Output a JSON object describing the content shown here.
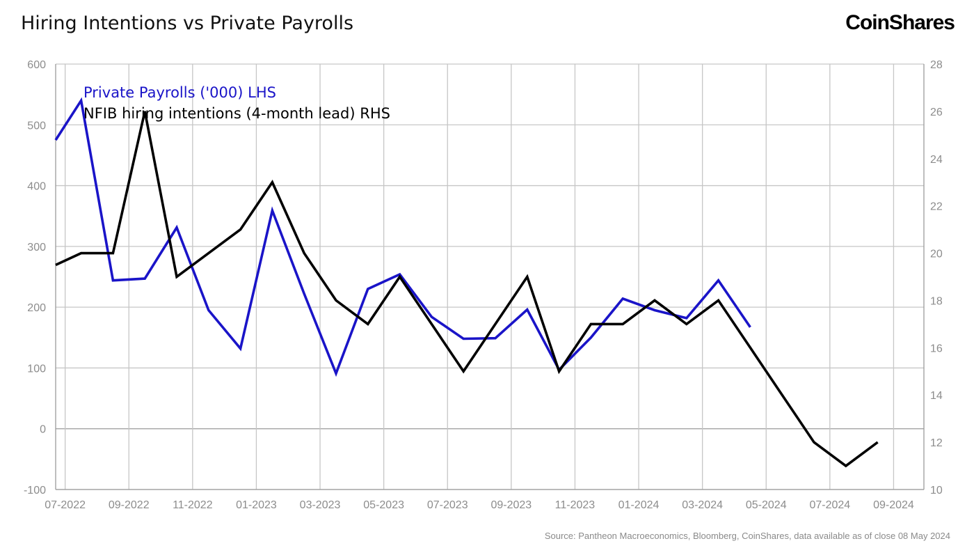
{
  "title": "Hiring Intentions vs Private Payrolls",
  "brand": "CoinShares",
  "source": "Source: Pantheon Macroeconomics, Bloomberg, CoinShares, data available as of close 08 May 2024",
  "chart_data": {
    "type": "line",
    "x_tick_labels": [
      "07-2022",
      "09-2022",
      "11-2022",
      "01-2023",
      "03-2023",
      "05-2023",
      "07-2023",
      "09-2023",
      "11-2023",
      "01-2024",
      "03-2024",
      "05-2024",
      "07-2024",
      "09-2024"
    ],
    "y_left": {
      "ticks": [
        600,
        500,
        400,
        300,
        200,
        100,
        0,
        -100
      ],
      "ylim": [
        -100,
        600
      ]
    },
    "y_right": {
      "ticks": [
        28,
        26,
        24,
        22,
        20,
        18,
        16,
        14,
        12,
        10
      ],
      "ylim": [
        10,
        28
      ]
    },
    "grid": true,
    "legend_position": "top-left",
    "series": [
      {
        "name": "Private Payrolls ('000) LHS",
        "axis": "left",
        "color": "#1a14c8",
        "points": [
          [
            "2022-06",
            475
          ],
          [
            "2022-07",
            540
          ],
          [
            "2022-08",
            244
          ],
          [
            "2022-09",
            247
          ],
          [
            "2022-10",
            331
          ],
          [
            "2022-11",
            195
          ],
          [
            "2022-12",
            132
          ],
          [
            "2023-01",
            359
          ],
          [
            "2023-02",
            222
          ],
          [
            "2023-03",
            91
          ],
          [
            "2023-04",
            230
          ],
          [
            "2023-05",
            254
          ],
          [
            "2023-06",
            184
          ],
          [
            "2023-07",
            148
          ],
          [
            "2023-08",
            149
          ],
          [
            "2023-09",
            196
          ],
          [
            "2023-10",
            97
          ],
          [
            "2023-11",
            150
          ],
          [
            "2023-12",
            214
          ],
          [
            "2024-01",
            195
          ],
          [
            "2024-02",
            182
          ],
          [
            "2024-03",
            244
          ],
          [
            "2024-04",
            167
          ]
        ]
      },
      {
        "name": "NFIB hiring intentions (4-month lead) RHS",
        "axis": "right",
        "color": "#000000",
        "points": [
          [
            "2022-06",
            19.5
          ],
          [
            "2022-07",
            20
          ],
          [
            "2022-08",
            20
          ],
          [
            "2022-09",
            26
          ],
          [
            "2022-10",
            19
          ],
          [
            "2022-11",
            20
          ],
          [
            "2022-12",
            21
          ],
          [
            "2023-01",
            23
          ],
          [
            "2023-02",
            20
          ],
          [
            "2023-03",
            18
          ],
          [
            "2023-04",
            17
          ],
          [
            "2023-05",
            19
          ],
          [
            "2023-06",
            17
          ],
          [
            "2023-07",
            15
          ],
          [
            "2023-08",
            17
          ],
          [
            "2023-09",
            19
          ],
          [
            "2023-10",
            15
          ],
          [
            "2023-11",
            17
          ],
          [
            "2023-12",
            17
          ],
          [
            "2024-01",
            18
          ],
          [
            "2024-02",
            17
          ],
          [
            "2024-03",
            18
          ],
          [
            "2024-04",
            16
          ],
          [
            "2024-05",
            14
          ],
          [
            "2024-06",
            12
          ],
          [
            "2024-07",
            11
          ],
          [
            "2024-08",
            12
          ]
        ]
      }
    ]
  }
}
